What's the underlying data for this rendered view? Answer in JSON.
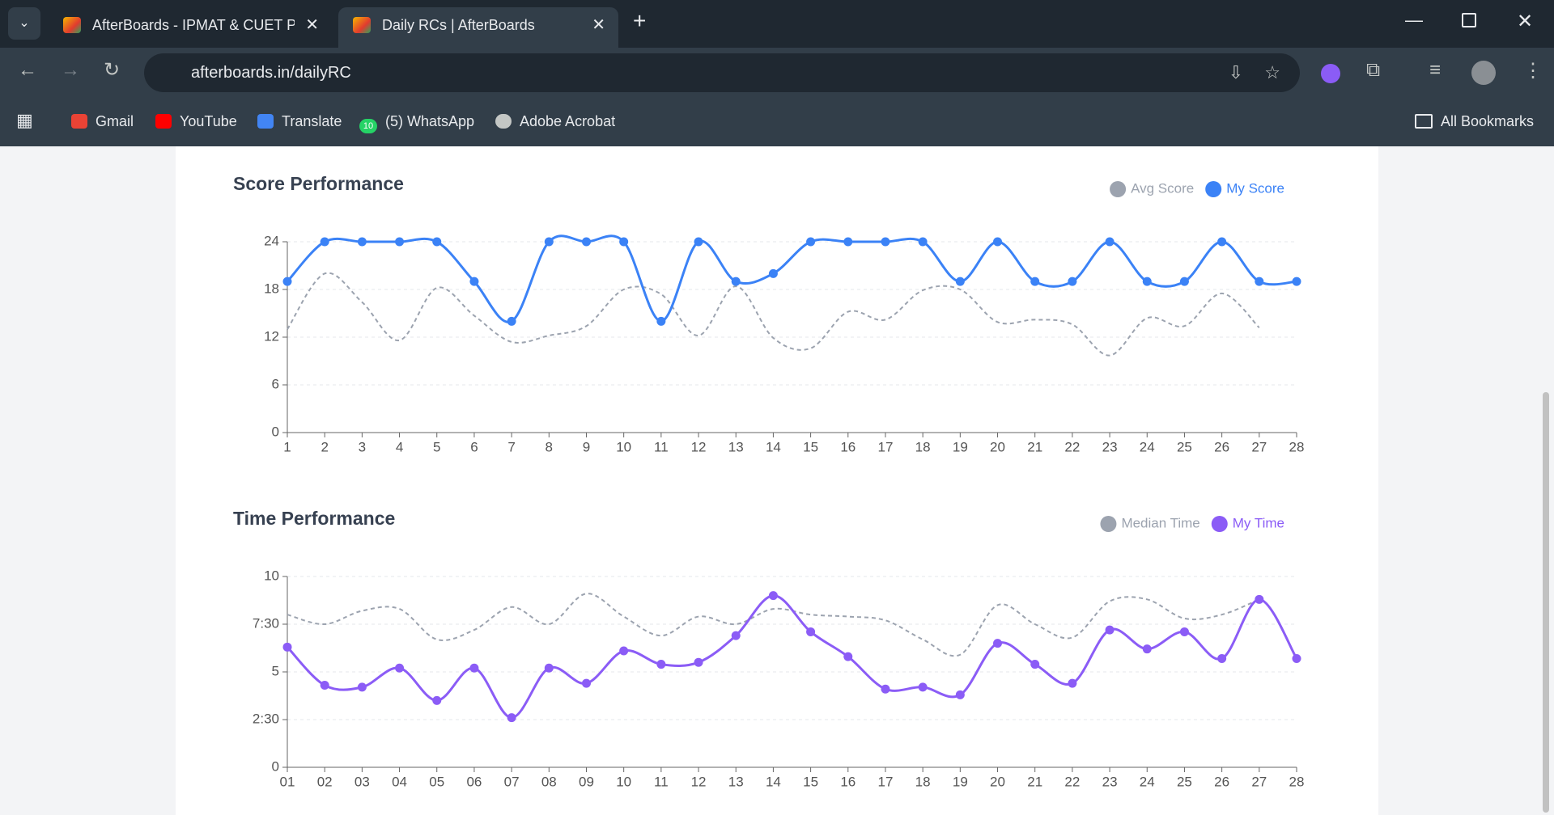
{
  "browser": {
    "tabs": [
      "AfterBoards - IPMAT & CUET Pr",
      "Daily RCs | AfterBoards"
    ],
    "url": "afterboards.in/dailyRC",
    "bookmarks": [
      "Gmail",
      "YouTube",
      "Translate",
      "(5) WhatsApp",
      "Adobe Acrobat"
    ],
    "whatsapp_badge": "10",
    "all_bookmarks": "All Bookmarks"
  },
  "chart_data": [
    {
      "type": "line",
      "title": "Score Performance",
      "categories": [
        "1",
        "2",
        "3",
        "4",
        "5",
        "6",
        "7",
        "8",
        "9",
        "10",
        "11",
        "12",
        "13",
        "14",
        "15",
        "16",
        "17",
        "18",
        "19",
        "20",
        "21",
        "22",
        "23",
        "24",
        "25",
        "26",
        "27",
        "28"
      ],
      "series": [
        {
          "name": "Avg Score",
          "color": "#9ca3af",
          "dashed": true,
          "markers": false,
          "values": [
            13,
            20,
            16.4,
            11.6,
            18.2,
            14.7,
            11.4,
            12.2,
            13.4,
            18,
            17.4,
            12.2,
            18.4,
            11.9,
            10.6,
            15.2,
            14.2,
            17.9,
            18,
            13.9,
            14.2,
            13.6,
            9.7,
            14.4,
            13.4,
            17.5,
            13.2,
            null
          ]
        },
        {
          "name": "My Score",
          "color": "#3b82f6",
          "dashed": false,
          "markers": true,
          "values": [
            19,
            24,
            24,
            24,
            24,
            19,
            14,
            24,
            24,
            24,
            14,
            24,
            19,
            20,
            24,
            24,
            24,
            24,
            19,
            24,
            19,
            19,
            24,
            19,
            19,
            24,
            19,
            19
          ]
        }
      ],
      "ylim": [
        0,
        24
      ],
      "yticks": [
        0,
        6,
        12,
        18,
        24
      ],
      "grid": true
    },
    {
      "type": "line",
      "title": "Time Performance",
      "categories": [
        "01",
        "02",
        "03",
        "04",
        "05",
        "06",
        "07",
        "08",
        "09",
        "10",
        "11",
        "12",
        "13",
        "14",
        "15",
        "16",
        "17",
        "18",
        "19",
        "20",
        "21",
        "22",
        "23",
        "24",
        "25",
        "26",
        "27",
        "28"
      ],
      "series": [
        {
          "name": "Median Time",
          "color": "#9ca3af",
          "dashed": true,
          "markers": false,
          "values": [
            8,
            7.5,
            8.2,
            8.3,
            6.7,
            7.2,
            8.4,
            7.5,
            9.1,
            7.9,
            6.9,
            7.9,
            7.5,
            8.3,
            8,
            7.9,
            7.7,
            6.7,
            5.9,
            8.5,
            7.5,
            6.8,
            8.7,
            8.8,
            7.8,
            8,
            8.8,
            null
          ]
        },
        {
          "name": "My Time",
          "color": "#8b5cf6",
          "dashed": false,
          "markers": true,
          "values": [
            6.3,
            4.3,
            4.2,
            5.2,
            3.5,
            5.2,
            2.6,
            5.2,
            4.4,
            6.1,
            5.4,
            5.5,
            6.9,
            9,
            7.1,
            5.8,
            4.1,
            4.2,
            3.8,
            6.5,
            5.4,
            4.4,
            7.2,
            6.2,
            7.1,
            5.7,
            8.8,
            5.7
          ]
        }
      ],
      "ylim": [
        0,
        10
      ],
      "yticks": [
        0,
        {
          "value": 2.5,
          "label": "2:30"
        },
        5,
        {
          "value": 7.5,
          "label": "7:30"
        },
        10
      ],
      "grid": true
    }
  ]
}
